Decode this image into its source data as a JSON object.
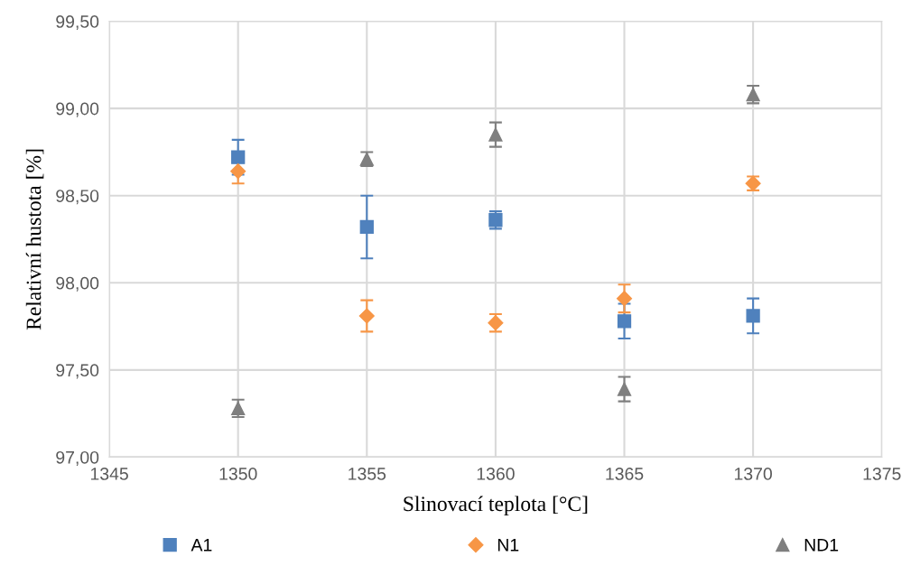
{
  "chart_data": {
    "type": "scatter",
    "xlabel": "Slinovací teplota [°C]",
    "ylabel": "Relativní hustota [%]",
    "x": [
      1350,
      1355,
      1360,
      1365,
      1370
    ],
    "series": [
      {
        "name": "A1",
        "color": "#4f81bd",
        "marker": "square",
        "values": [
          98.72,
          98.32,
          98.36,
          97.78,
          97.81
        ],
        "errors": [
          0.1,
          0.18,
          0.05,
          0.1,
          0.1
        ]
      },
      {
        "name": "N1",
        "color": "#f79646",
        "marker": "diamond",
        "values": [
          98.64,
          97.81,
          97.77,
          97.91,
          98.57
        ],
        "errors": [
          0.07,
          0.09,
          0.05,
          0.08,
          0.04
        ]
      },
      {
        "name": "ND1",
        "color": "#7f7f7f",
        "marker": "triangle",
        "values": [
          97.28,
          98.71,
          98.85,
          97.39,
          99.08
        ],
        "errors": [
          0.05,
          0.04,
          0.07,
          0.07,
          0.05
        ]
      }
    ],
    "xlim": [
      1345,
      1375
    ],
    "xticks": [
      1345,
      1350,
      1355,
      1360,
      1365,
      1370,
      1375
    ],
    "ylim": [
      97,
      99.5
    ],
    "yticks": [
      {
        "value": 97,
        "label": "97,00"
      },
      {
        "value": 97.5,
        "label": "97,50"
      },
      {
        "value": 98,
        "label": "98,00"
      },
      {
        "value": 98.5,
        "label": "98,50"
      },
      {
        "value": 99,
        "label": "99,00"
      },
      {
        "value": 99.5,
        "label": "99,50"
      }
    ],
    "grid": true,
    "legend": "bottom"
  }
}
